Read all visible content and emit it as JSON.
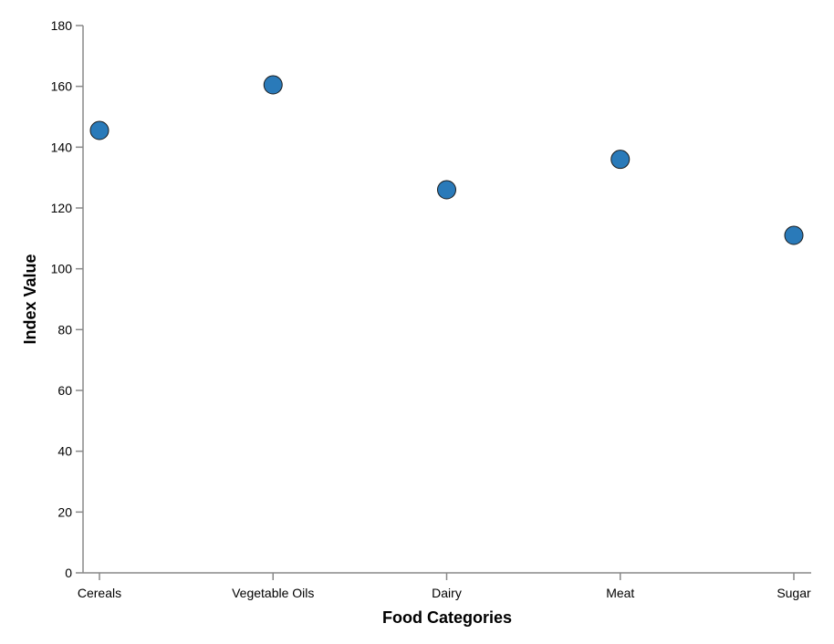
{
  "chart_data": {
    "type": "scatter",
    "title": "",
    "xlabel": "Food Categories",
    "ylabel": "Index Value",
    "categories": [
      "Cereals",
      "Vegetable Oils",
      "Dairy",
      "Meat",
      "Sugar"
    ],
    "values": [
      145.5,
      160.5,
      126,
      136,
      111
    ],
    "ylim": [
      0,
      180
    ],
    "yticks": [
      0,
      20,
      40,
      60,
      80,
      100,
      120,
      140,
      160,
      180
    ],
    "grid": false,
    "point_color": "#2a7ab9"
  }
}
